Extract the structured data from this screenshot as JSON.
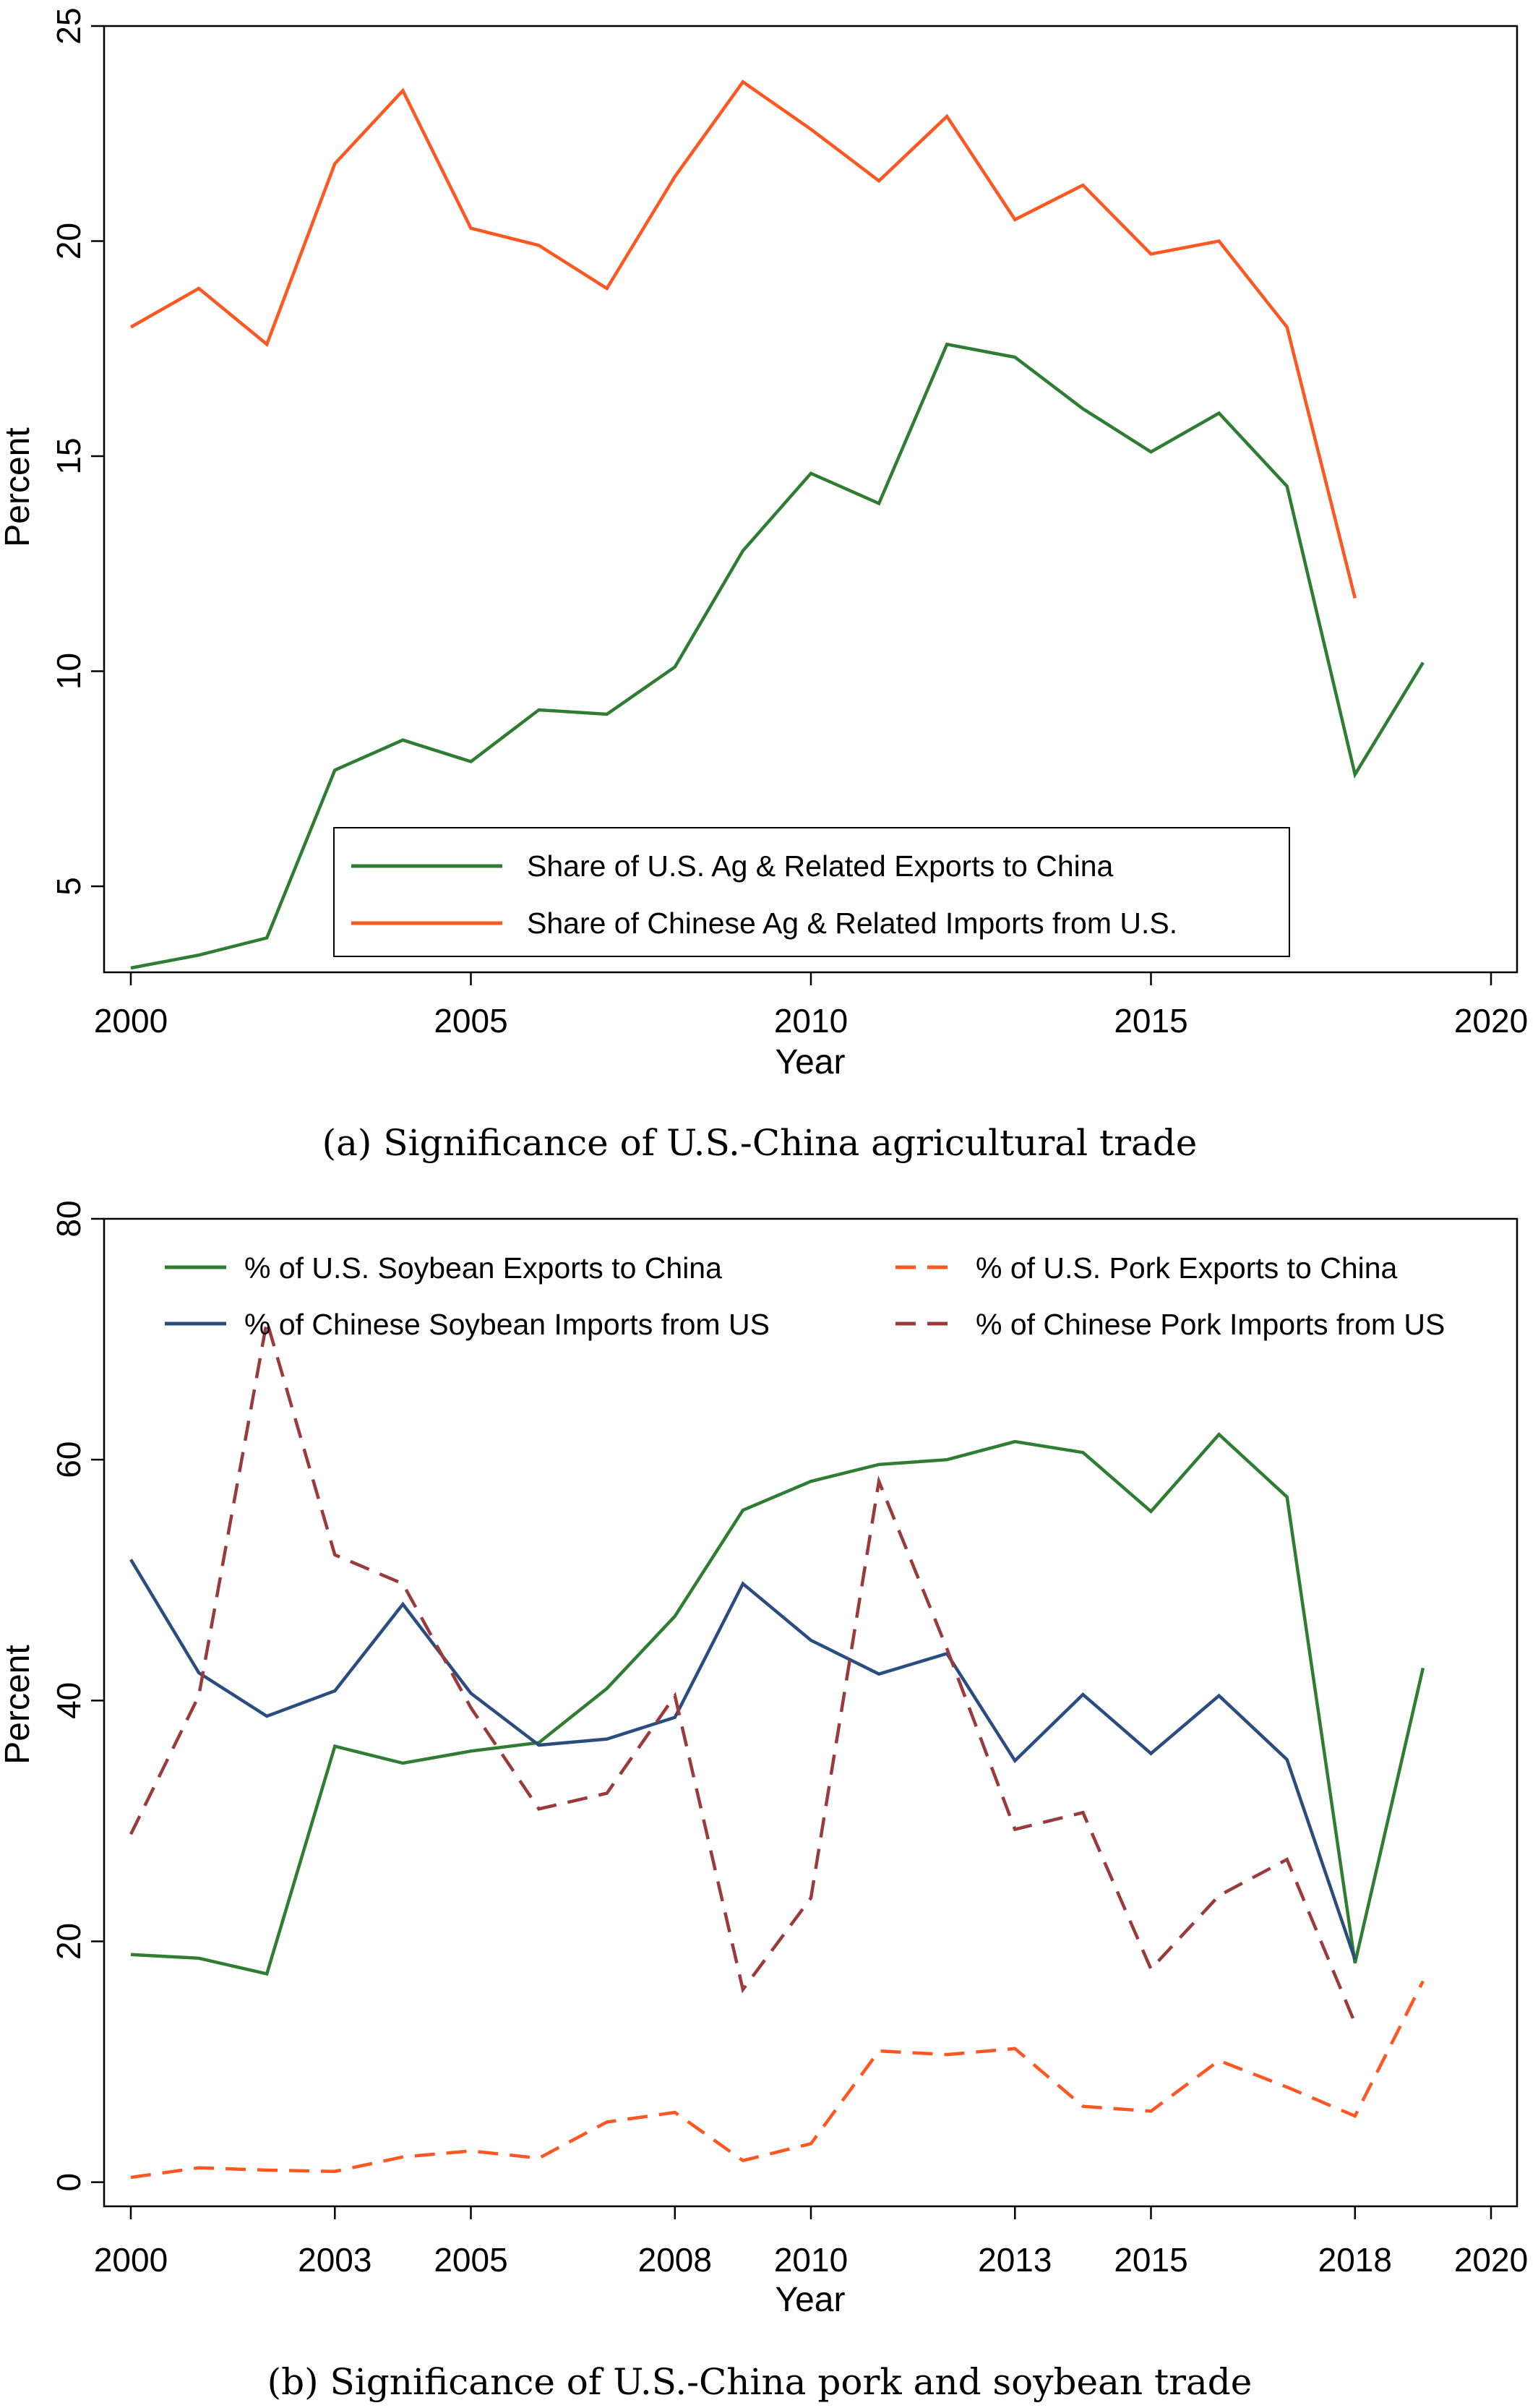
{
  "chart_data": [
    {
      "type": "line",
      "title": "",
      "caption": "(a) Significance of U.S.-China agricultural trade",
      "xlabel": "Year",
      "ylabel": "Percent",
      "xlim": [
        2000,
        2020
      ],
      "ylim": [
        3,
        25
      ],
      "xticks": [
        2000,
        2005,
        2010,
        2015,
        2020
      ],
      "yticks": [
        5,
        10,
        15,
        20,
        25
      ],
      "grid": false,
      "legend_position": "bottom",
      "series": [
        {
          "name": "Share of U.S. Ag & Related Exports to China",
          "color": "#2e7d32",
          "dash": "solid",
          "x": [
            2000,
            2001,
            2002,
            2003,
            2004,
            2005,
            2006,
            2007,
            2008,
            2009,
            2010,
            2011,
            2012,
            2013,
            2014,
            2015,
            2016,
            2017,
            2018,
            2019
          ],
          "y": [
            3.1,
            3.4,
            3.8,
            7.7,
            8.4,
            7.9,
            9.1,
            9.0,
            10.1,
            12.8,
            14.6,
            13.9,
            17.6,
            17.3,
            16.1,
            15.1,
            16.0,
            14.3,
            7.6,
            10.2
          ]
        },
        {
          "name": "Share of Chinese Ag & Related Imports from U.S.",
          "color": "#ff5722",
          "dash": "solid",
          "x": [
            2000,
            2001,
            2002,
            2003,
            2004,
            2005,
            2006,
            2007,
            2008,
            2009,
            2010,
            2011,
            2012,
            2013,
            2014,
            2015,
            2016,
            2017,
            2018
          ],
          "y": [
            18.0,
            18.9,
            17.6,
            21.8,
            23.5,
            20.3,
            19.9,
            18.9,
            21.5,
            23.7,
            22.6,
            21.4,
            22.9,
            20.5,
            21.3,
            19.7,
            20.0,
            18.0,
            11.7
          ]
        }
      ]
    },
    {
      "type": "line",
      "title": "",
      "caption": "(b) Significance of U.S.-China pork and soybean trade",
      "xlabel": "Year",
      "ylabel": "Percent",
      "xlim": [
        2000,
        2020
      ],
      "ylim": [
        -2,
        80
      ],
      "xticks": [
        2000,
        2003,
        2005,
        2008,
        2010,
        2013,
        2015,
        2018,
        2020
      ],
      "yticks": [
        0,
        20,
        40,
        60,
        80
      ],
      "grid": false,
      "legend_position": "top",
      "series": [
        {
          "name": "% of U.S. Soybean Exports to China",
          "color": "#2e7d32",
          "dash": "solid",
          "x": [
            2000,
            2001,
            2002,
            2003,
            2004,
            2005,
            2006,
            2007,
            2008,
            2009,
            2010,
            2011,
            2012,
            2013,
            2014,
            2015,
            2016,
            2017,
            2018,
            2019
          ],
          "y": [
            18.9,
            18.6,
            17.3,
            36.2,
            34.8,
            35.8,
            36.5,
            41.0,
            47.0,
            55.8,
            58.2,
            59.6,
            60.0,
            61.5,
            60.6,
            55.7,
            62.1,
            56.9,
            18.2,
            42.7
          ]
        },
        {
          "name": "% of U.S. Pork Exports to China",
          "color": "#ff5722",
          "dash": "dashed",
          "x": [
            2000,
            2001,
            2002,
            2003,
            2004,
            2005,
            2006,
            2007,
            2008,
            2009,
            2010,
            2011,
            2012,
            2013,
            2014,
            2015,
            2016,
            2017,
            2018,
            2019
          ],
          "y": [
            0.4,
            1.2,
            1.0,
            0.9,
            2.1,
            2.6,
            2.0,
            5.0,
            5.8,
            1.8,
            3.2,
            10.9,
            10.6,
            11.1,
            6.3,
            5.9,
            10.1,
            7.9,
            5.5,
            16.7
          ]
        },
        {
          "name": "% of Chinese Soybean Imports from US",
          "color": "#2b4c7e",
          "dash": "solid",
          "x": [
            2000,
            2001,
            2002,
            2003,
            2004,
            2005,
            2006,
            2007,
            2008,
            2009,
            2010,
            2011,
            2012,
            2013,
            2014,
            2015,
            2016,
            2017,
            2018
          ],
          "y": [
            51.7,
            42.3,
            38.7,
            40.8,
            48.0,
            40.6,
            36.3,
            36.8,
            38.6,
            49.7,
            45.0,
            42.2,
            43.9,
            35.0,
            40.5,
            35.6,
            40.4,
            35.1,
            18.5
          ]
        },
        {
          "name": "% of Chinese Pork Imports from US",
          "color": "#9b3a3a",
          "dash": "dashed",
          "x": [
            2000,
            2001,
            2002,
            2003,
            2004,
            2005,
            2006,
            2007,
            2008,
            2009,
            2010,
            2011,
            2012,
            2013,
            2014,
            2015,
            2016,
            2017,
            2018
          ],
          "y": [
            28.9,
            40.4,
            71.5,
            52.1,
            49.7,
            39.4,
            31.0,
            32.3,
            40.4,
            16.0,
            23.6,
            58.2,
            44.3,
            29.3,
            30.7,
            17.7,
            23.8,
            26.8,
            13.2
          ]
        }
      ]
    }
  ]
}
